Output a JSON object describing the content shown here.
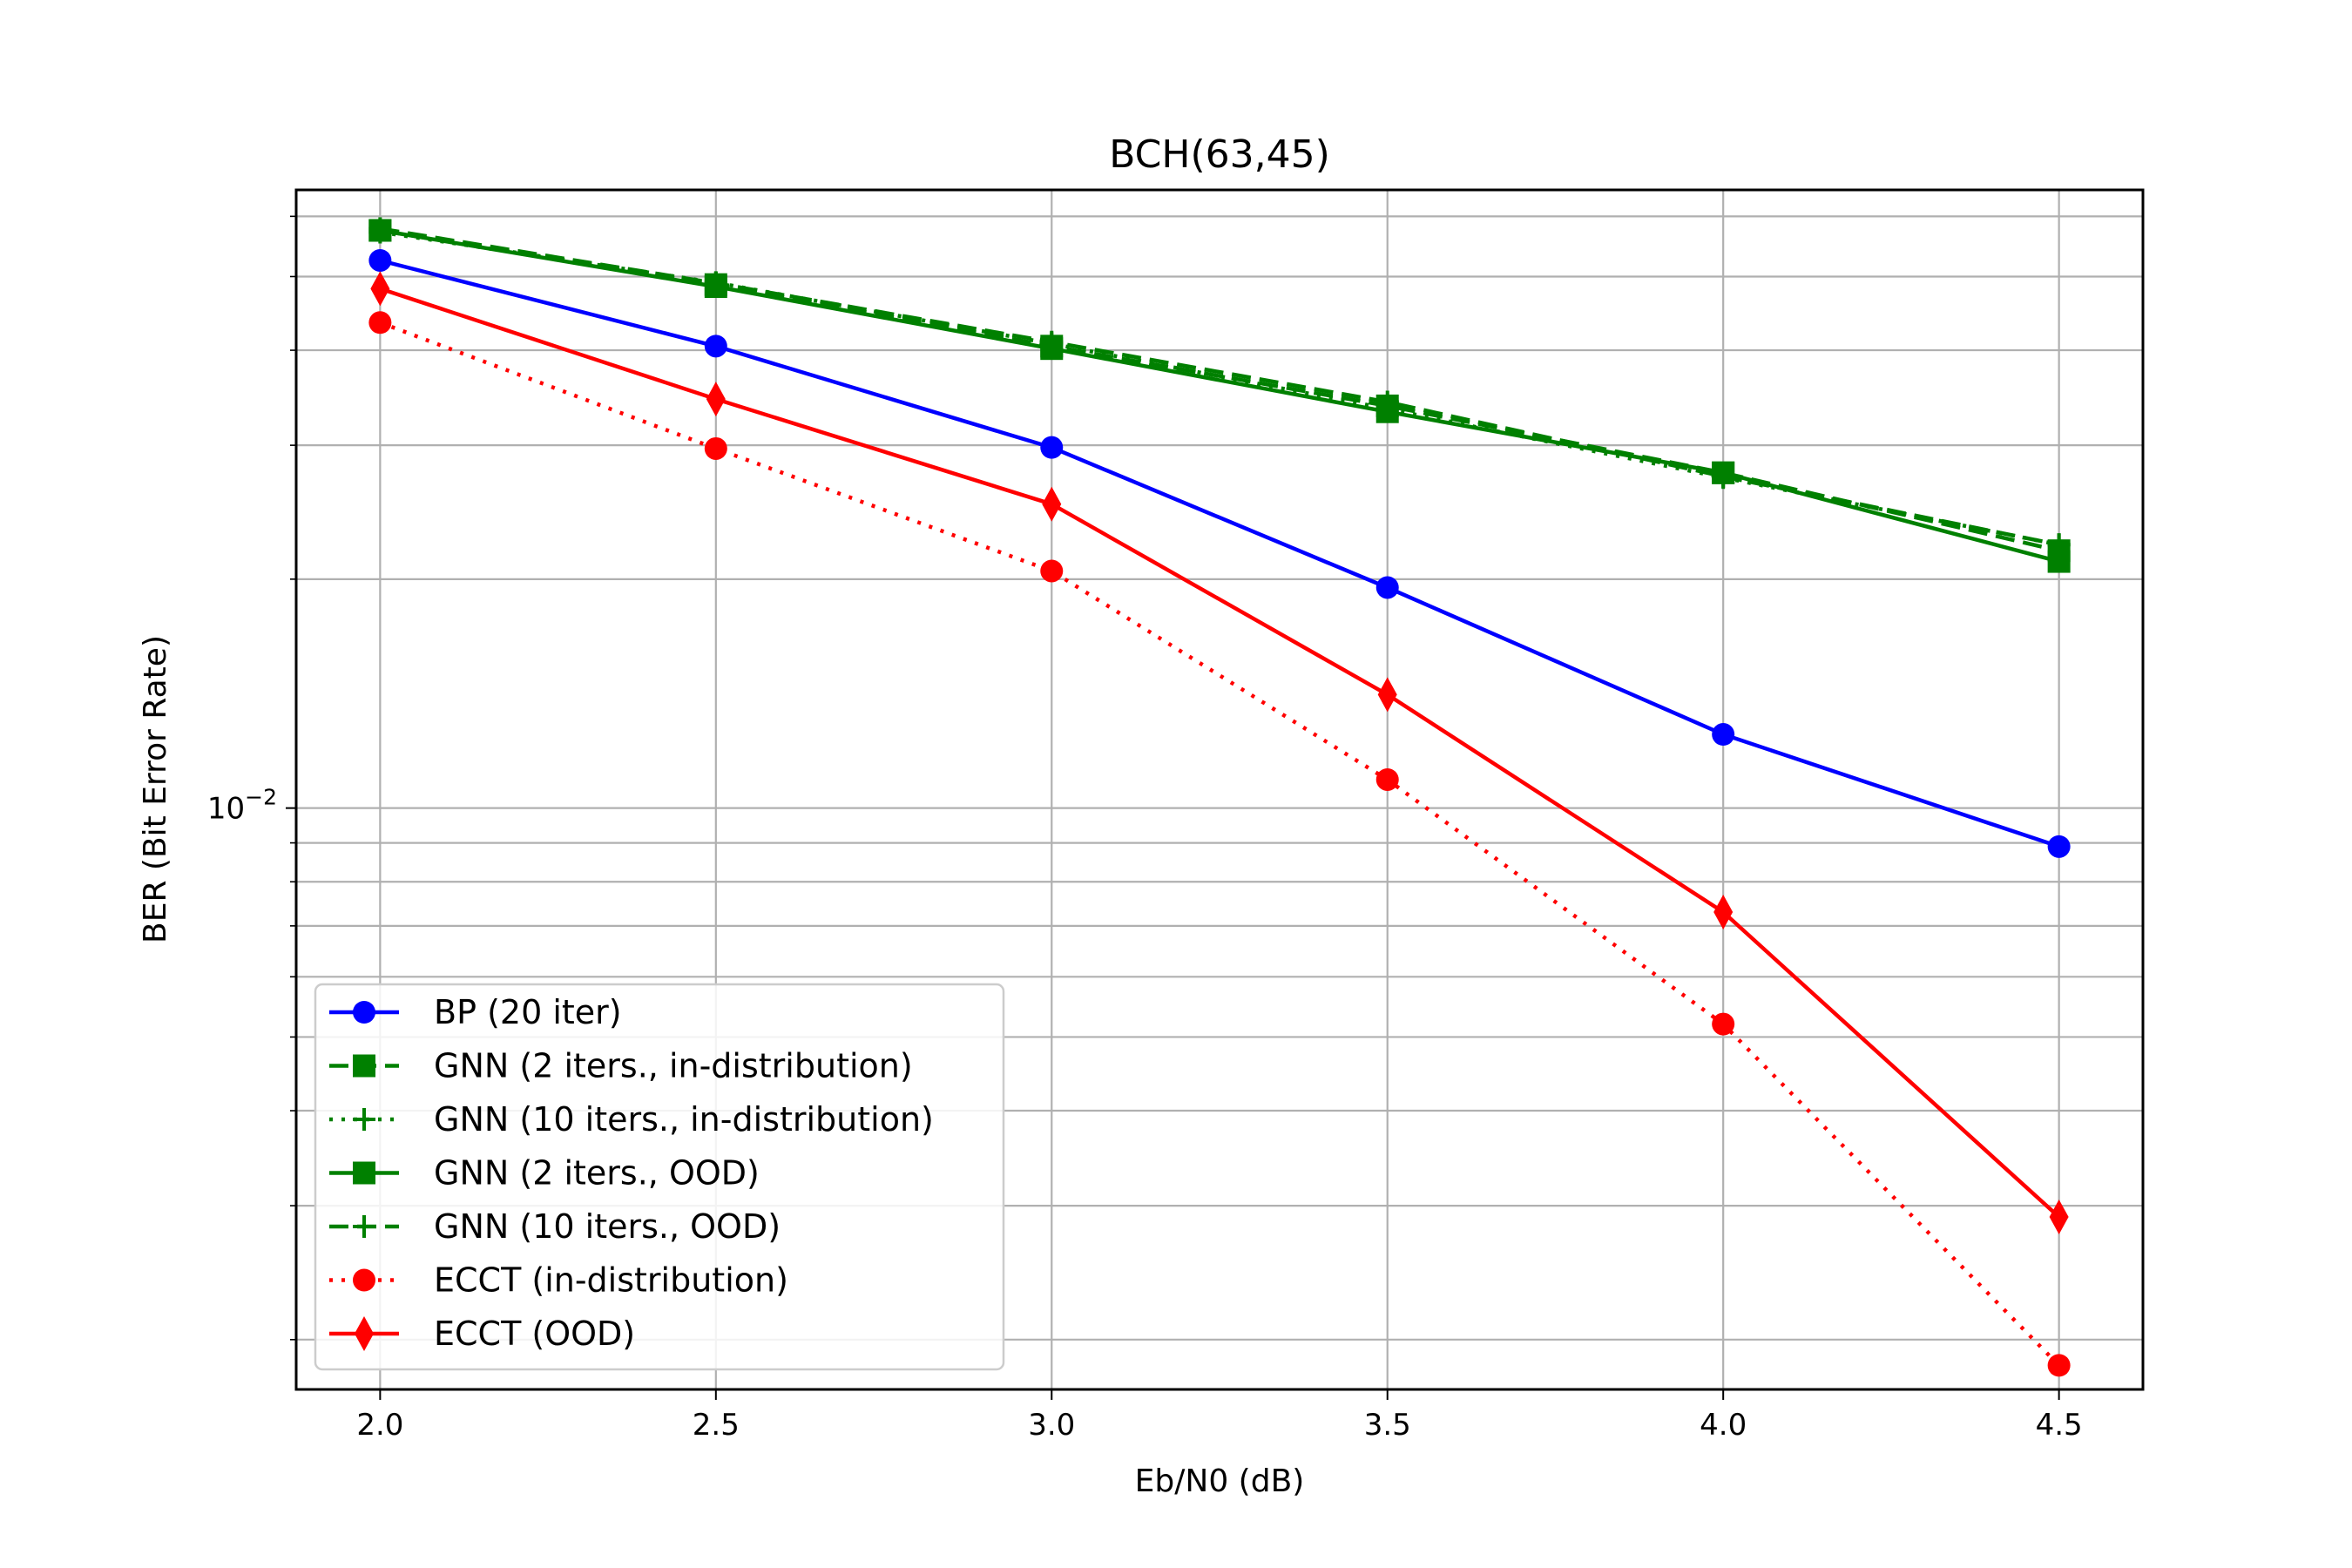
{
  "chart_data": {
    "type": "line",
    "title": "BCH(63,45)",
    "xlabel": "Eb/N0 (dB)",
    "ylabel": "BER (Bit Error Rate)",
    "x": [
      2.0,
      2.5,
      3.0,
      3.5,
      4.0,
      4.5
    ],
    "xticks": [
      "2.0",
      "2.5",
      "3.0",
      "3.5",
      "4.0",
      "4.5"
    ],
    "xlim": [
      1.875,
      4.625
    ],
    "ylim": [
      0.00172,
      0.065
    ],
    "yscale": "log",
    "ytick_major": {
      "base": "10",
      "exponent": "−2"
    },
    "grid": true,
    "legend_position": "lower-left",
    "series": [
      {
        "name": "BP (20 iter)",
        "color": "#0000ff",
        "linestyle": "solid",
        "marker": "circle",
        "values": [
          0.0525,
          0.0405,
          0.0298,
          0.0195,
          0.0125,
          0.0089
        ]
      },
      {
        "name": "GNN (2 iters., in-distribution)",
        "color": "#008000",
        "linestyle": "dashed",
        "marker": "square",
        "values": [
          0.0575,
          0.0488,
          0.0405,
          0.0338,
          0.0276,
          0.0218
        ]
      },
      {
        "name": "GNN (10 iters., in-distribution)",
        "color": "#008000",
        "linestyle": "dotted",
        "marker": "plus",
        "values": [
          0.0572,
          0.0491,
          0.0408,
          0.0335,
          0.0272,
          0.0222
        ]
      },
      {
        "name": "GNN (2 iters., OOD)",
        "color": "#008000",
        "linestyle": "solid",
        "marker": "square",
        "values": [
          0.0575,
          0.0485,
          0.0402,
          0.0332,
          0.0276,
          0.0211
        ]
      },
      {
        "name": "GNN (10 iters., OOD)",
        "color": "#008000",
        "linestyle": "dashed",
        "marker": "plus",
        "values": [
          0.0578,
          0.049,
          0.041,
          0.0342,
          0.0273,
          0.0222
        ]
      },
      {
        "name": "ECCT (in-distribution)",
        "color": "#ff0000",
        "linestyle": "dotted",
        "marker": "circle",
        "values": [
          0.0435,
          0.0297,
          0.0205,
          0.0109,
          0.0052,
          0.00185
        ]
      },
      {
        "name": "ECCT (OOD)",
        "color": "#ff0000",
        "linestyle": "solid",
        "marker": "diamond",
        "values": [
          0.0482,
          0.0345,
          0.0251,
          0.0141,
          0.0073,
          0.0029
        ]
      }
    ]
  }
}
